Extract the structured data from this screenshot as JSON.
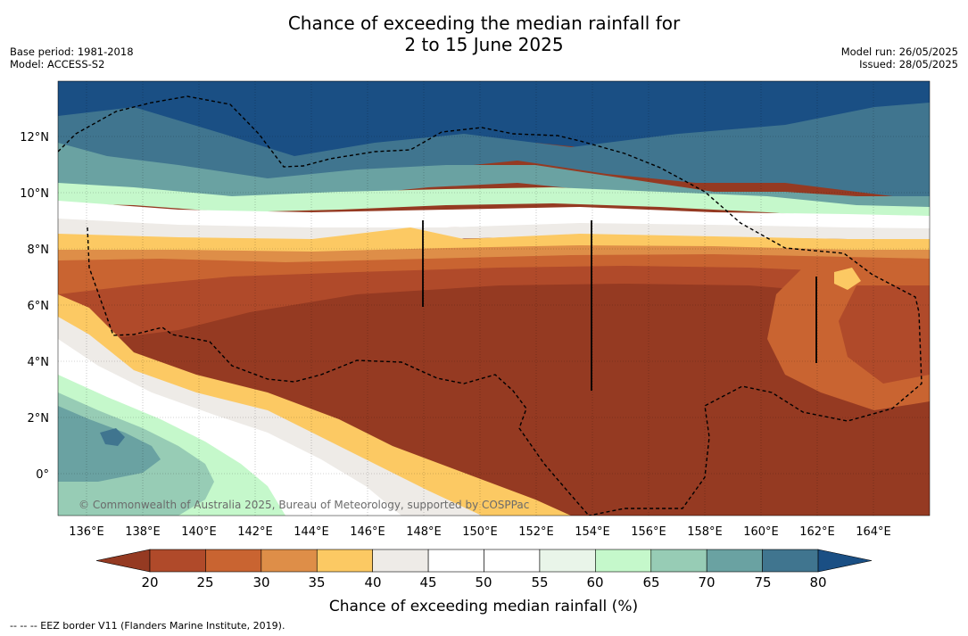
{
  "title_line1": "Chance of exceeding the median rainfall for",
  "title_line2": "2 to 15 June 2025",
  "base_period": "Base period: 1981-2018",
  "model": "Model: ACCESS-S2",
  "model_run": "Model run: 26/05/2025",
  "issued": "Issued: 28/05/2025",
  "copyright": "© Commonwealth of Australia 2025, Bureau of Meteorology, supported by COSPPac",
  "lon_ticks": [
    "136°E",
    "138°E",
    "140°E",
    "142°E",
    "144°E",
    "146°E",
    "148°E",
    "150°E",
    "152°E",
    "154°E",
    "156°E",
    "158°E",
    "160°E",
    "162°E",
    "164°E"
  ],
  "lat_ticks": [
    "12°N",
    "10°N",
    "8°N",
    "6°N",
    "4°N",
    "2°N",
    "0°"
  ],
  "colorbar": {
    "label": "Chance of exceeding median rainfall (%)",
    "ticks": [
      "20",
      "25",
      "30",
      "35",
      "40",
      "45",
      "50",
      "55",
      "60",
      "65",
      "70",
      "75",
      "80"
    ],
    "colors": [
      "#953a22",
      "#b04a2a",
      "#c96431",
      "#de8e48",
      "#fcc963",
      "#eeebe7",
      "#ffffff",
      "#ffffff",
      "#e9f5e9",
      "#c5f8cb",
      "#97ccb5",
      "#6aa2a2",
      "#40758f",
      "#1a4f84"
    ]
  },
  "legend_note": "--  --  -- EEZ border V11 (Flanders Marine Institute, 2019)."
}
